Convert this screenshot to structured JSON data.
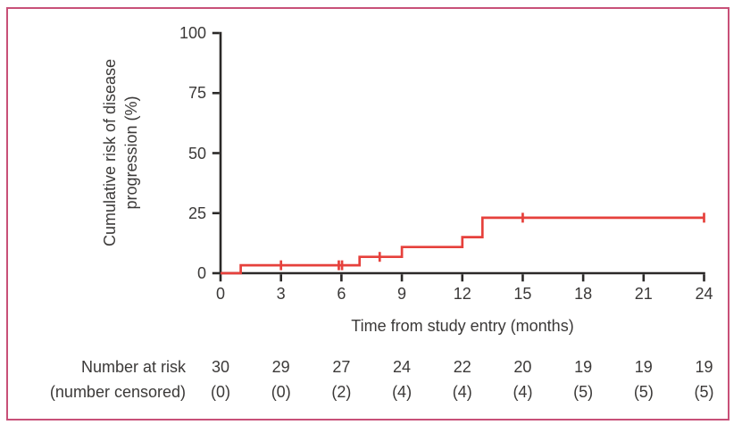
{
  "figure": {
    "border_color": "#c85078",
    "background_color": "#ffffff",
    "axis_color": "#2b2928",
    "text_color": "#3b3938"
  },
  "chart_data": {
    "type": "line",
    "subtype": "kaplan_meier_cumulative_incidence_step",
    "title": "",
    "xlabel": "Time from study entry (months)",
    "ylabel": "Cumulative risk of disease progression (%)",
    "ylabel_lines": [
      "Cumulative risk of disease",
      "progression (%)"
    ],
    "xlim": [
      0,
      24
    ],
    "ylim": [
      0,
      100
    ],
    "x_ticks": [
      0,
      3,
      6,
      9,
      12,
      15,
      18,
      21,
      24
    ],
    "y_ticks": [
      0,
      25,
      50,
      75,
      100
    ],
    "grid": false,
    "legend": "none",
    "series": [
      {
        "name": "Cumulative risk of disease progression",
        "color": "#e6413c",
        "step_points": [
          [
            0,
            0
          ],
          [
            1,
            3.3
          ],
          [
            6.9,
            6.8
          ],
          [
            9,
            10.9
          ],
          [
            12,
            15.0
          ],
          [
            13,
            23.1
          ]
        ],
        "end_x": 24,
        "censor_marks": [
          [
            3,
            3.3
          ],
          [
            5.87,
            3.3
          ],
          [
            6.03,
            3.3
          ],
          [
            7.9,
            6.8
          ],
          [
            15,
            23.1
          ],
          [
            24,
            23.1
          ]
        ]
      }
    ]
  },
  "risk_table": {
    "row1_label": "Number at risk",
    "row2_label": "(number censored)",
    "times": [
      0,
      3,
      6,
      9,
      12,
      15,
      18,
      21,
      24
    ],
    "at_risk": [
      "30",
      "29",
      "27",
      "24",
      "22",
      "20",
      "19",
      "19",
      "19"
    ],
    "censored": [
      "(0)",
      "(0)",
      "(2)",
      "(4)",
      "(4)",
      "(4)",
      "(5)",
      "(5)",
      "(5)"
    ]
  }
}
